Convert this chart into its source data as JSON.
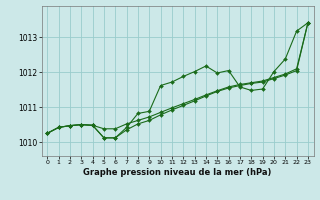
{
  "title": "Graphe pression niveau de la mer (hPa)",
  "bg_color": "#cce8e8",
  "grid_color": "#99cccc",
  "line_color": "#1a6b1a",
  "xlim": [
    -0.5,
    23.5
  ],
  "ylim": [
    1009.6,
    1013.9
  ],
  "xticks": [
    0,
    1,
    2,
    3,
    4,
    5,
    6,
    7,
    8,
    9,
    10,
    11,
    12,
    13,
    14,
    15,
    16,
    17,
    18,
    19,
    20,
    21,
    22,
    23
  ],
  "yticks": [
    1010,
    1011,
    1012,
    1013
  ],
  "series1": [
    1010.25,
    1010.42,
    1010.47,
    1010.5,
    1010.48,
    1010.12,
    1010.12,
    1010.42,
    1010.82,
    1010.88,
    1011.62,
    1011.72,
    1011.88,
    1012.02,
    1012.18,
    1011.98,
    1012.05,
    1011.58,
    1011.48,
    1011.52,
    1012.02,
    1012.38,
    1013.18,
    1013.42
  ],
  "series2": [
    1010.25,
    1010.42,
    1010.47,
    1010.5,
    1010.48,
    1010.12,
    1010.12,
    1010.35,
    1010.52,
    1010.62,
    1010.78,
    1010.92,
    1011.05,
    1011.18,
    1011.32,
    1011.45,
    1011.55,
    1011.62,
    1011.68,
    1011.72,
    1011.82,
    1011.92,
    1012.05,
    1013.42
  ],
  "series3": [
    1010.25,
    1010.42,
    1010.47,
    1010.5,
    1010.48,
    1010.38,
    1010.38,
    1010.52,
    1010.62,
    1010.72,
    1010.85,
    1010.98,
    1011.1,
    1011.22,
    1011.35,
    1011.47,
    1011.58,
    1011.65,
    1011.7,
    1011.75,
    1011.85,
    1011.95,
    1012.1,
    1013.42
  ]
}
